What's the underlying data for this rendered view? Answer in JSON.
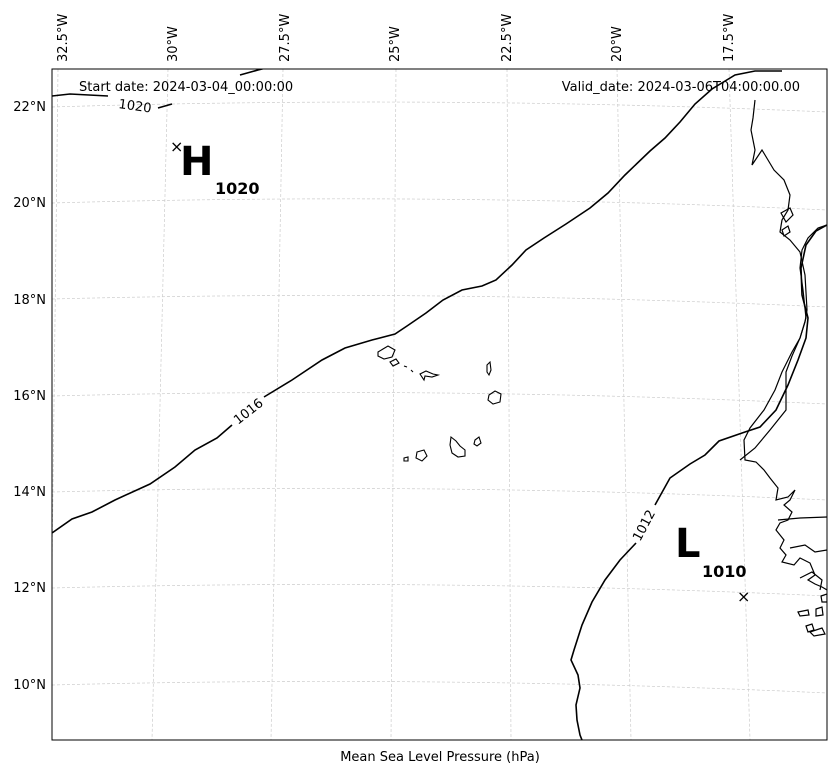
{
  "header": {
    "start_date": "Start date: 2024-03-04_00:00:00",
    "valid_date": "Valid_date: 2024-03-06T04:00:00.00"
  },
  "footer": {
    "xlabel": "Mean Sea Level Pressure (hPa)"
  },
  "axes": {
    "lon_labels": [
      "32.5°W",
      "30°W",
      "27.5°W",
      "25°W",
      "22.5°W",
      "20°W",
      "17.5°W"
    ],
    "lat_labels": [
      "22°N",
      "20°N",
      "18°N",
      "16°N",
      "14°N",
      "12°N",
      "10°N"
    ]
  },
  "isobars": [
    {
      "value": 1020,
      "label": "1020"
    },
    {
      "value": 1016,
      "label": "1016"
    },
    {
      "value": 1012,
      "label": "1012"
    }
  ],
  "pressure_centers": [
    {
      "type": "high",
      "letter": "H",
      "value": "1020"
    },
    {
      "type": "low",
      "letter": "L",
      "value": "1010"
    }
  ],
  "colors": {
    "contour": "#000000",
    "grid": "#cccccc",
    "coast": "#000000"
  }
}
